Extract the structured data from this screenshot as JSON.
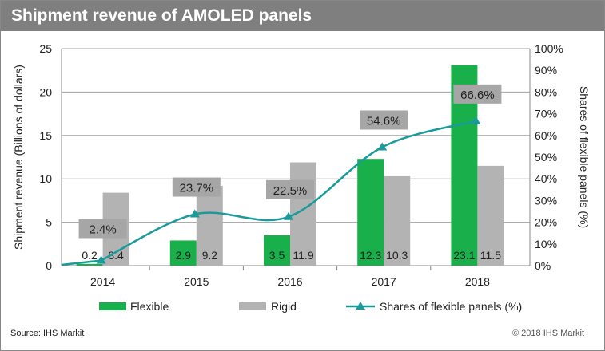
{
  "chart_data": {
    "type": "bar",
    "title": "Shipment revenue of AMOLED panels",
    "categories": [
      "2014",
      "2015",
      "2016",
      "2017",
      "2018"
    ],
    "series": [
      {
        "name": "Flexible",
        "type": "bar",
        "axis": "left",
        "color": "#19b04b",
        "values": [
          0.2,
          2.9,
          3.5,
          12.3,
          23.1
        ]
      },
      {
        "name": "Rigid",
        "type": "bar",
        "axis": "left",
        "color": "#b3b3b3",
        "values": [
          8.4,
          9.2,
          11.9,
          10.3,
          11.5
        ]
      },
      {
        "name": "Shares of flexible panels (%)",
        "type": "line",
        "axis": "right",
        "color": "#1a9a9a",
        "values": [
          2.4,
          23.7,
          22.5,
          54.6,
          66.6
        ],
        "labels": [
          "2.4%",
          "23.7%",
          "22.5%",
          "54.6%",
          "66.6%"
        ]
      }
    ],
    "ylabel": "Shipment revenue (Billions of dollars)",
    "y2label": "Shares of flexible panels (%)",
    "ylim": [
      0,
      25
    ],
    "yticks": [
      "0",
      "5",
      "10",
      "15",
      "20",
      "25"
    ],
    "y2lim": [
      0,
      100
    ],
    "y2ticks": [
      "0%",
      "10%",
      "20%",
      "30%",
      "40%",
      "50%",
      "60%",
      "70%",
      "80%",
      "90%",
      "100%"
    ],
    "grid": true,
    "legend": "bottom"
  },
  "footer": {
    "source": "Source:  IHS Markit",
    "copyright": "© 2018 IHS Markit"
  }
}
